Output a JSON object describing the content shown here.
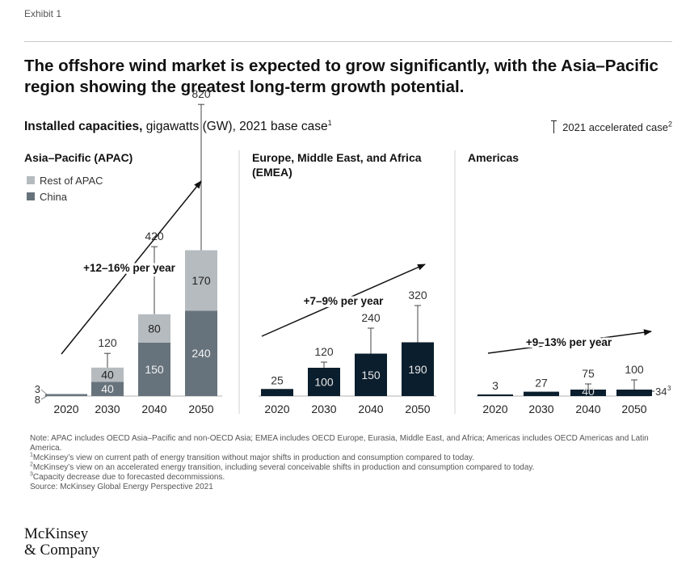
{
  "exhibit_label": "Exhibit 1",
  "title": "The offshore wind market is expected to grow significantly, with the Asia–Pacific region showing the greatest long-term growth potential.",
  "subtitle_bold": "Installed capacities,",
  "subtitle_rest": " gigawatts (GW), 2021 base case",
  "subtitle_sup": "1",
  "accelerated_legend": "2021 accelerated case",
  "accelerated_sup": "2",
  "apac_legend": {
    "rest": "Rest of APAC",
    "china": "China"
  },
  "colors": {
    "dark": "#0b1e2d",
    "china": "#67737c",
    "rest": "#b5bbbf",
    "axis": "#b0b0b0"
  },
  "chart_data": [
    {
      "type": "bar",
      "stacked": true,
      "title": "Asia–Pacific (APAC)",
      "categories": [
        "2020",
        "2030",
        "2040",
        "2050"
      ],
      "series": [
        {
          "name": "China",
          "values": [
            8,
            40,
            150,
            240
          ]
        },
        {
          "name": "Rest of APAC",
          "values": [
            3,
            40,
            80,
            170
          ]
        }
      ],
      "accelerated": [
        null,
        120,
        420,
        820
      ],
      "growth_label": "+12–16% per year"
    },
    {
      "type": "bar",
      "title": "Europe, Middle East, and Africa (EMEA)",
      "categories": [
        "2020",
        "2030",
        "2040",
        "2050"
      ],
      "series": [
        {
          "name": "Base case",
          "values": [
            25,
            100,
            150,
            190
          ]
        }
      ],
      "accelerated": [
        null,
        120,
        240,
        320
      ],
      "growth_label": "+7–9% per year"
    },
    {
      "type": "bar",
      "title": "Americas",
      "categories": [
        "2020",
        "2030",
        "2040",
        "2050"
      ],
      "series": [
        {
          "name": "Base case",
          "values": [
            3,
            27,
            40,
            34
          ]
        }
      ],
      "accelerated": [
        null,
        null,
        75,
        100
      ],
      "growth_label": "+9–13% per year",
      "annotation_sup": "3"
    }
  ],
  "notes": [
    "Note: APAC includes OECD Asia–Pacific and non-OECD Asia; EMEA includes OECD Europe, Eurasia, Middle East, and Africa; Americas includes OECD Americas and Latin America.",
    "McKinsey’s view on current path of energy transition without major shifts in production and consumption compared to today.",
    "McKinsey’s view on an accelerated energy transition, including several conceivable shifts in production and consumption compared to today.",
    "Capacity decrease due to forecasted decommissions.",
    "Source: McKinsey Global Energy Perspective 2021"
  ],
  "note_sups": [
    "1",
    "2",
    "3"
  ],
  "logo": {
    "line1": "McKinsey",
    "line2": "& Company"
  }
}
